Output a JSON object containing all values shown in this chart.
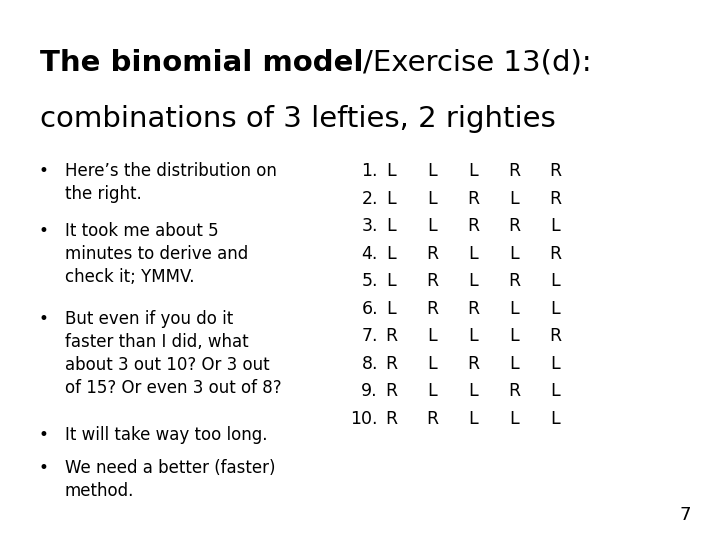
{
  "title_bold": "The binomial model",
  "title_normal": "/Exercise 13(d):",
  "title_line2": "combinations of 3 lefties, 2 righties",
  "background_color": "#ffffff",
  "text_color": "#000000",
  "bullet_points": [
    "Here’s the distribution on\nthe right.",
    "It took me about 5\nminutes to derive and\ncheck it; YMMV.",
    "But even if you do it\nfaster than I did, what\nabout 3 out 10? Or 3 out\nof 15? Or even 3 out of 8?",
    "It will take way too long.",
    "We need a better (faster)\nmethod."
  ],
  "combinations": [
    [
      "1.",
      "L",
      "L",
      "L",
      "R",
      "R"
    ],
    [
      "2.",
      "L",
      "L",
      "R",
      "L",
      "R"
    ],
    [
      "3.",
      "L",
      "L",
      "R",
      "R",
      "L"
    ],
    [
      "4.",
      "L",
      "R",
      "L",
      "L",
      "R"
    ],
    [
      "5.",
      "L",
      "R",
      "L",
      "R",
      "L"
    ],
    [
      "6.",
      "L",
      "R",
      "R",
      "L",
      "L"
    ],
    [
      "7.",
      "R",
      "L",
      "L",
      "L",
      "R"
    ],
    [
      "8.",
      "R",
      "L",
      "R",
      "L",
      "L"
    ],
    [
      "9.",
      "R",
      "L",
      "L",
      "R",
      "L"
    ],
    [
      "10.",
      "R",
      "R",
      "L",
      "L",
      "L"
    ]
  ],
  "page_number": "7",
  "title_fontsize": 21,
  "bullet_fontsize": 12,
  "combo_fontsize": 12.5
}
